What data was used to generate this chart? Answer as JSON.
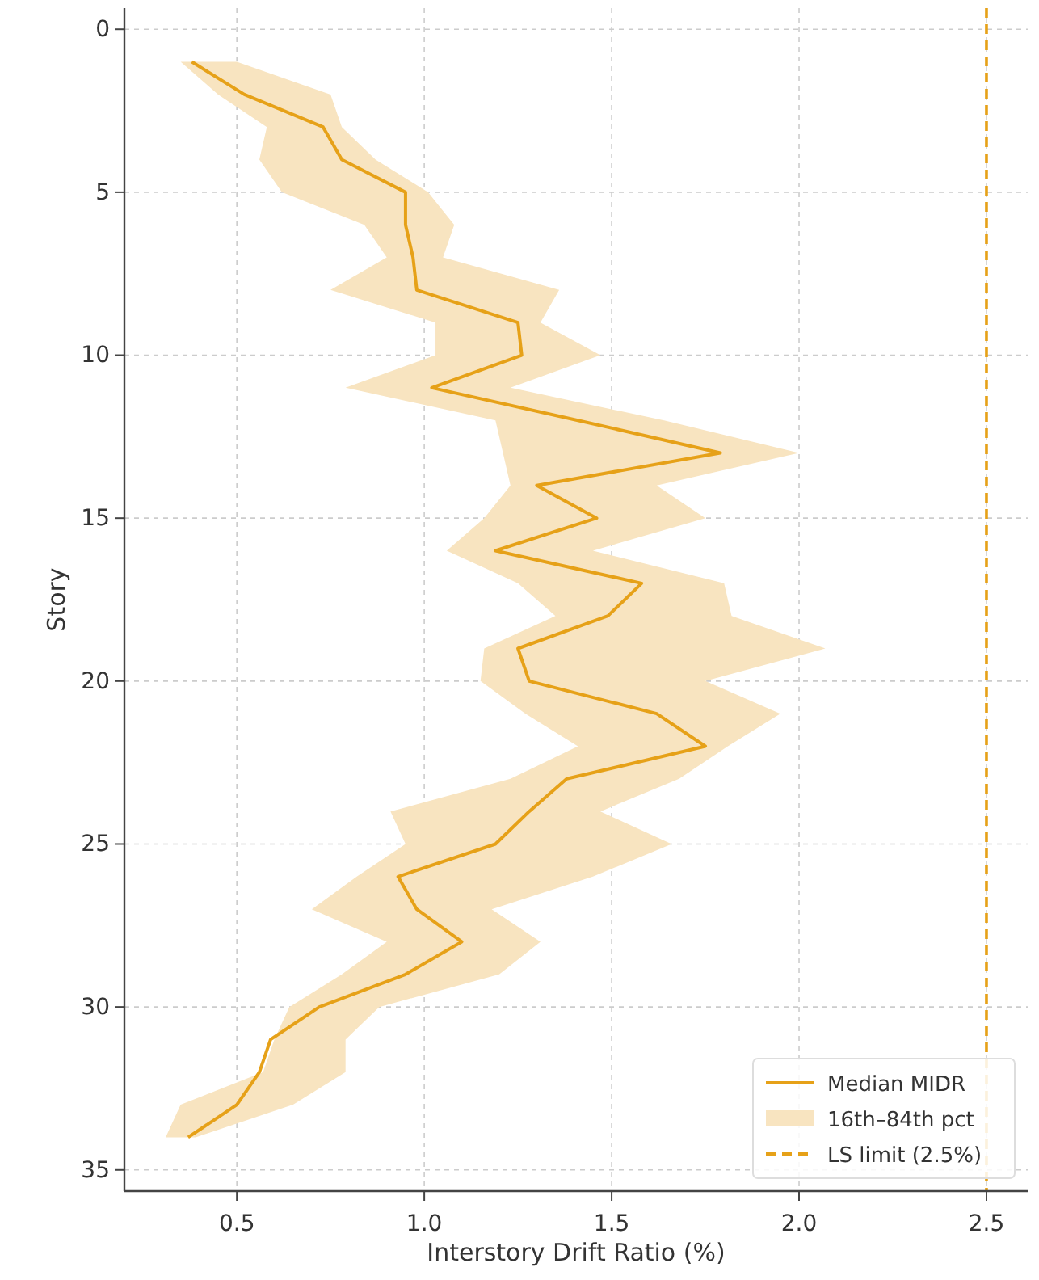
{
  "chart_data": {
    "type": "line",
    "orientation": "horizontal",
    "xlabel": "Interstory Drift Ratio (%)",
    "ylabel": "Story",
    "x": [
      1,
      2,
      3,
      4,
      5,
      6,
      7,
      8,
      9,
      10,
      11,
      12,
      13,
      14,
      15,
      16,
      17,
      18,
      19,
      20,
      21,
      22,
      23,
      24,
      25,
      26,
      27,
      28,
      29,
      30,
      31,
      32,
      33,
      34
    ],
    "series": [
      {
        "type": "area",
        "name": "16th–84th pct",
        "color": "#f8e4c0",
        "values": [
          null,
          null,
          null,
          null,
          null,
          null,
          null,
          null,
          null,
          null,
          null,
          null,
          null,
          null,
          null,
          null,
          null,
          null,
          null,
          null,
          null,
          null,
          null,
          null,
          null,
          null,
          null,
          null,
          null,
          null,
          null,
          null,
          null,
          null
        ],
        "lower": [
          0.35,
          0.45,
          0.58,
          0.56,
          0.62,
          0.84,
          0.9,
          0.75,
          1.03,
          1.03,
          0.79,
          1.19,
          1.21,
          1.23,
          1.16,
          1.06,
          1.25,
          1.35,
          1.16,
          1.15,
          1.27,
          1.41,
          1.23,
          0.91,
          0.95,
          0.82,
          0.7,
          0.9,
          0.78,
          0.64,
          0.6,
          0.57,
          0.35,
          0.31
        ],
        "upper": [
          0.5,
          0.75,
          0.78,
          0.87,
          1.01,
          1.08,
          1.05,
          1.36,
          1.31,
          1.47,
          1.23,
          1.64,
          2.0,
          1.62,
          1.75,
          1.45,
          1.8,
          1.82,
          2.07,
          1.75,
          1.95,
          1.81,
          1.68,
          1.47,
          1.66,
          1.45,
          1.18,
          1.31,
          1.2,
          0.88,
          0.79,
          0.79,
          0.65,
          0.39
        ]
      },
      {
        "type": "line",
        "name": "Median MIDR",
        "color": "#e6a118",
        "values": [
          0.38,
          0.52,
          0.73,
          0.78,
          0.95,
          0.95,
          0.97,
          0.98,
          1.25,
          1.26,
          1.02,
          1.41,
          1.79,
          1.3,
          1.46,
          1.19,
          1.58,
          1.49,
          1.25,
          1.28,
          1.62,
          1.75,
          1.38,
          1.28,
          1.19,
          0.93,
          0.98,
          1.1,
          0.95,
          0.72,
          0.59,
          0.56,
          0.5,
          0.37
        ]
      }
    ],
    "ref_lines": [
      {
        "axis": "x",
        "value": 2.5,
        "label": "LS limit (2.5%)",
        "color": "#e6a118",
        "line_style": "dashed"
      }
    ],
    "xlim": [
      0.2,
      2.61
    ],
    "xticks": [
      {
        "value": 0.5,
        "label": "0.5"
      },
      {
        "value": 1,
        "label": "1.0"
      },
      {
        "value": 1.5,
        "label": "1.5"
      },
      {
        "value": 2,
        "label": "2.0"
      },
      {
        "value": 2.5,
        "label": "2.5"
      }
    ],
    "ylim": [
      35.65,
      -0.65
    ],
    "yticks": [
      0,
      5,
      10,
      15,
      20,
      25,
      30,
      35
    ],
    "grid": true,
    "legend": "bottom right",
    "line_style": "solid",
    "marker": "none"
  }
}
